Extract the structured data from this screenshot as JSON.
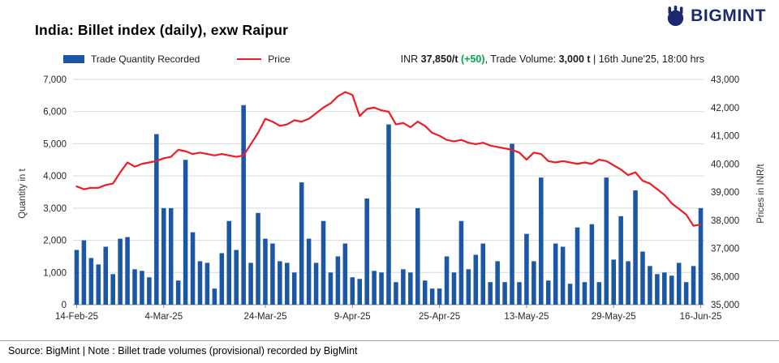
{
  "header": {
    "title": "India: Billet index (daily), exw Raipur",
    "brand": "BIGMINT"
  },
  "legend": {
    "bar_label": "Trade Quantity Recorded",
    "line_label": "Price"
  },
  "info": {
    "prefix": "INR ",
    "price": "37,850/t",
    "change": " (+50)",
    "sep": ", ",
    "volume_label": "Trade Volume: ",
    "volume": "3,000 t",
    "timestamp": " | 16th June'25, 18:00 hrs"
  },
  "colors": {
    "bar": "#1c57a5",
    "line": "#ee1c25",
    "green": "#00a651",
    "navy": "#1b2a6e",
    "grid": "#d9d9d9",
    "axis": "#8c8c8c"
  },
  "footer": {
    "source": "Source: BigMint | Note : Billet trade volumes (provisional) recorded by BigMint"
  },
  "chart_data": {
    "type": "combo",
    "title": "India: Billet index (daily), exw Raipur",
    "grid": true,
    "legend_position": "top-left",
    "left_axis": {
      "label": "Quantity in t",
      "min": 0,
      "max": 7000,
      "step": 1000
    },
    "right_axis": {
      "label": "Prices in INR/t",
      "min": 35000,
      "max": 43000,
      "step": 1000
    },
    "x_ticks": [
      {
        "index": 0,
        "label": "14-Feb-25"
      },
      {
        "index": 12,
        "label": "4-Mar-25"
      },
      {
        "index": 26,
        "label": "24-Mar-25"
      },
      {
        "index": 38,
        "label": "9-Apr-25"
      },
      {
        "index": 50,
        "label": "25-Apr-25"
      },
      {
        "index": 62,
        "label": "13-May-25"
      },
      {
        "index": 74,
        "label": "29-May-25"
      },
      {
        "index": 86,
        "label": "16-Jun-25"
      }
    ],
    "categories": [
      "14-Feb-25",
      "17-Feb-25",
      "18-Feb-25",
      "19-Feb-25",
      "20-Feb-25",
      "21-Feb-25",
      "24-Feb-25",
      "25-Feb-25",
      "26-Feb-25",
      "27-Feb-25",
      "28-Feb-25",
      "3-Mar-25",
      "4-Mar-25",
      "5-Mar-25",
      "6-Mar-25",
      "7-Mar-25",
      "10-Mar-25",
      "11-Mar-25",
      "12-Mar-25",
      "13-Mar-25",
      "14-Mar-25",
      "17-Mar-25",
      "18-Mar-25",
      "19-Mar-25",
      "20-Mar-25",
      "21-Mar-25",
      "24-Mar-25",
      "25-Mar-25",
      "26-Mar-25",
      "27-Mar-25",
      "28-Mar-25",
      "31-Mar-25",
      "1-Apr-25",
      "2-Apr-25",
      "3-Apr-25",
      "4-Apr-25",
      "7-Apr-25",
      "8-Apr-25",
      "9-Apr-25",
      "10-Apr-25",
      "11-Apr-25",
      "14-Apr-25",
      "15-Apr-25",
      "16-Apr-25",
      "17-Apr-25",
      "18-Apr-25",
      "21-Apr-25",
      "22-Apr-25",
      "23-Apr-25",
      "24-Apr-25",
      "25-Apr-25",
      "28-Apr-25",
      "29-Apr-25",
      "30-Apr-25",
      "1-May-25",
      "2-May-25",
      "5-May-25",
      "6-May-25",
      "7-May-25",
      "8-May-25",
      "9-May-25",
      "12-May-25",
      "13-May-25",
      "14-May-25",
      "15-May-25",
      "16-May-25",
      "19-May-25",
      "20-May-25",
      "21-May-25",
      "22-May-25",
      "23-May-25",
      "26-May-25",
      "27-May-25",
      "28-May-25",
      "29-May-25",
      "30-May-25",
      "2-Jun-25",
      "3-Jun-25",
      "4-Jun-25",
      "5-Jun-25",
      "6-Jun-25",
      "9-Jun-25",
      "10-Jun-25",
      "11-Jun-25",
      "12-Jun-25",
      "13-Jun-25",
      "16-Jun-25"
    ],
    "series": [
      {
        "name": "Trade Quantity Recorded",
        "type": "bar",
        "axis": "left",
        "values": [
          1700,
          2000,
          1450,
          1250,
          1800,
          950,
          2050,
          2100,
          1100,
          1050,
          850,
          5300,
          3000,
          3000,
          750,
          4500,
          2250,
          1350,
          1300,
          500,
          1600,
          2600,
          1700,
          6200,
          1300,
          2850,
          2050,
          1900,
          1350,
          1300,
          1000,
          3800,
          2050,
          1300,
          2600,
          1000,
          1500,
          1900,
          850,
          800,
          3300,
          1050,
          1000,
          5600,
          700,
          1100,
          1000,
          3000,
          750,
          500,
          500,
          1500,
          1000,
          2600,
          1100,
          1550,
          1900,
          700,
          1350,
          700,
          5000,
          700,
          2200,
          1350,
          3950,
          750,
          1900,
          1800,
          650,
          2400,
          700,
          2500,
          700,
          3950,
          1400,
          2750,
          1350,
          3550,
          1650,
          1200,
          950,
          1000,
          900,
          1300,
          700,
          1200,
          3000
        ]
      },
      {
        "name": "Price",
        "type": "line",
        "axis": "right",
        "values": [
          39200,
          39100,
          39150,
          39150,
          39250,
          39300,
          39700,
          40050,
          39900,
          40000,
          40050,
          40100,
          40200,
          40250,
          40500,
          40450,
          40350,
          40400,
          40350,
          40300,
          40350,
          40300,
          40250,
          40300,
          40700,
          41100,
          41600,
          41500,
          41350,
          41400,
          41550,
          41500,
          41600,
          41800,
          42000,
          42150,
          42400,
          42550,
          42450,
          41700,
          41950,
          42000,
          41900,
          41850,
          41400,
          41450,
          41300,
          41500,
          41350,
          41100,
          41000,
          40850,
          40800,
          40850,
          40750,
          40700,
          40750,
          40650,
          40600,
          40550,
          40500,
          40400,
          40150,
          40400,
          40350,
          40100,
          40050,
          40100,
          40050,
          40000,
          40050,
          40000,
          40150,
          40100,
          39950,
          39800,
          39600,
          39700,
          39400,
          39300,
          39100,
          38900,
          38600,
          38400,
          38200,
          37800,
          37850
        ]
      }
    ]
  }
}
